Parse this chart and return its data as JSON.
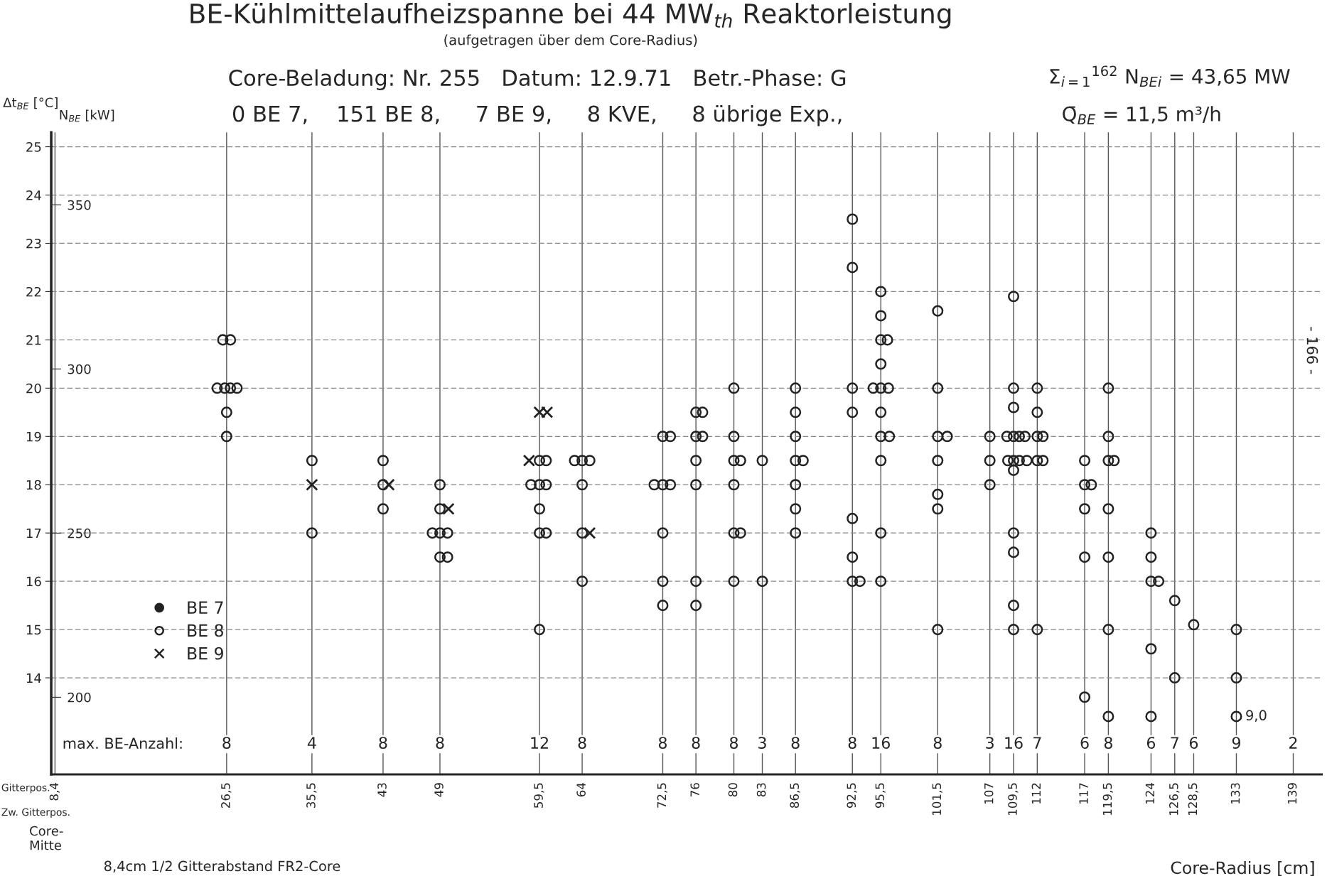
{
  "chart_data": {
    "type": "scatter",
    "title": "BE-Kühlmittelaufheizspanne bei 44 MW$_{th}$ Reaktorleistung",
    "subtitle": "(aufgetragen über dem Core-Radius)",
    "xlabel": "Core-Radius [cm]",
    "ylabel": "Δt$_{BE}$ [°C]",
    "y2label": "N$_{BE}$ [kW]",
    "xlim": [
      8.0,
      142
    ],
    "ylim": [
      12.0,
      25.3
    ],
    "y2lim": [
      176.5,
      372.1
    ],
    "xticks": [
      {
        "value": 8.4,
        "label": "8,4"
      },
      {
        "value": 26.5,
        "label": "26,5"
      },
      {
        "value": 35.5,
        "label": "35,5"
      },
      43,
      49,
      {
        "value": 59.5,
        "label": "59,5"
      },
      64,
      {
        "value": 72.5,
        "label": "72,5"
      },
      76,
      80,
      83,
      {
        "value": 86.5,
        "label": "86,5"
      },
      {
        "value": 92.5,
        "label": "92,5"
      },
      {
        "value": 95.5,
        "label": "95,5"
      },
      {
        "value": 101.5,
        "label": "101,5"
      },
      107,
      {
        "value": 109.5,
        "label": "109,5"
      },
      112,
      117,
      {
        "value": 119.5,
        "label": "119,5"
      },
      124,
      {
        "value": 126.5,
        "label": "126,5"
      },
      {
        "value": 128.5,
        "label": "128,5"
      },
      133,
      139
    ],
    "yticks": [
      14,
      15,
      16,
      17,
      18,
      19,
      20,
      21,
      22,
      23,
      24,
      25
    ],
    "y2ticks": [
      200,
      250,
      300,
      350
    ],
    "grid": true,
    "legend": "bottom left",
    "series": [
      {
        "name": "BE 7",
        "color": "#222222",
        "marker": "circle"
      },
      {
        "name": "BE 8",
        "color": "#222222",
        "marker": "circle",
        "x": [
          26.1,
          26.9,
          25.5,
          26.3,
          26.9,
          27.6,
          26.5,
          26.5,
          35.5,
          35.5,
          43,
          43,
          43,
          49,
          49,
          48.2,
          49,
          49.8,
          49,
          49.8,
          59.5,
          60.2,
          58.6,
          59.5,
          60.2,
          59.5,
          59.5,
          60.2,
          59.5,
          63.2,
          64,
          64.8,
          64,
          64,
          64,
          72.5,
          73.3,
          71.6,
          72.5,
          73.3,
          72.5,
          72.5,
          72.5,
          76,
          76.7,
          76,
          76.7,
          76,
          76,
          76,
          76,
          80,
          80,
          80,
          80.7,
          80,
          80,
          80.7,
          80,
          83,
          83,
          86.5,
          86.5,
          86.5,
          86.5,
          87.3,
          86.5,
          86.5,
          86.5,
          92.5,
          92.5,
          92.5,
          92.5,
          92.5,
          92.5,
          92.5,
          93.3,
          95.5,
          95.5,
          95.5,
          96.2,
          95.5,
          94.7,
          95.5,
          96.3,
          95.5,
          95.5,
          96.4,
          95.5,
          95.5,
          95.5,
          101.5,
          101.5,
          101.5,
          102.5,
          101.5,
          101.5,
          101.5,
          101.5,
          107,
          107,
          107,
          109.5,
          109.5,
          109.5,
          108.8,
          109.5,
          110.1,
          110.7,
          108.9,
          109.5,
          110.1,
          110.9,
          109.5,
          109.5,
          109.5,
          109.5,
          109.5,
          112,
          112,
          112,
          112.6,
          112,
          112.6,
          112,
          117,
          117,
          117.7,
          117,
          117,
          117,
          119.5,
          119.5,
          119.5,
          120.1,
          119.5,
          119.5,
          119.5,
          119.5,
          124,
          124,
          124,
          124.8,
          124,
          124,
          126.5,
          126.5,
          128.5,
          133,
          133,
          133
        ],
        "values": [
          21,
          21,
          20,
          20,
          20,
          20,
          19.5,
          19,
          18.5,
          17,
          18.5,
          18,
          17.5,
          18,
          17.5,
          17,
          17,
          17,
          16.5,
          16.5,
          18.5,
          18.5,
          18,
          18,
          18,
          17.5,
          17,
          17,
          15,
          18.5,
          18.5,
          18.5,
          18,
          17,
          16,
          19,
          19,
          18,
          18,
          18,
          17,
          16,
          15.5,
          19.5,
          19.5,
          19,
          19,
          18.5,
          18,
          16,
          15.5,
          20,
          19,
          18.5,
          18.5,
          18,
          17,
          17,
          16,
          18.5,
          16,
          20,
          19.5,
          19,
          18.5,
          18.5,
          18,
          17.5,
          17,
          23.5,
          22.5,
          20,
          19.5,
          17.3,
          16.5,
          16,
          16,
          22,
          21.5,
          21,
          21,
          20.5,
          20,
          20,
          20,
          19.5,
          19,
          19,
          18.5,
          17,
          16,
          21.6,
          20,
          19,
          19,
          18.5,
          17.8,
          17.5,
          15,
          19,
          18.5,
          18,
          21.9,
          20,
          19.6,
          19,
          19,
          19,
          19,
          18.5,
          18.5,
          18.5,
          18.5,
          18.3,
          17,
          16.6,
          15.5,
          15,
          20,
          19.5,
          19,
          19,
          18.5,
          18.5,
          15,
          18.5,
          18,
          18,
          17.5,
          16.5,
          13.6,
          20,
          19,
          18.5,
          18.5,
          17.5,
          16.5,
          15,
          13.2,
          17,
          16.5,
          16,
          16,
          14.6,
          13.2,
          15.6,
          14,
          15.1,
          15,
          14,
          13.2
        ]
      },
      {
        "name": "BE 9",
        "color": "#222222",
        "marker": "cross",
        "x": [
          59.5,
          60.3,
          58.4,
          35.5,
          43.6,
          49.9,
          64.8
        ],
        "values": [
          19.5,
          19.5,
          18.5,
          18,
          18,
          17.5,
          17
        ]
      }
    ],
    "annotations": [
      "Core-Beladung: Nr. 255   Datum: 12.9.71   Betr.-Phase: G",
      "0 BE 7,    151 BE 8,     7 BE 9,     8 KVE,     8 übrige Exp.,",
      "Σ$_{i=1}$$^{162}$ N$_{BEi}$ = 43,65 MW",
      "Q̄$_{BE}$ = 11,5 m³/h",
      "Gitterpos.",
      "Zw. Gitterpos.",
      "Core-\nMitte",
      "8,4cm 1/2 Gitterabstand FR2-Core",
      "- 166 -",
      "max. BE-Anzahl:",
      "8",
      "4",
      "8",
      "8",
      "12",
      "8",
      "8",
      "8",
      "8",
      "3",
      "8",
      "8",
      "16",
      "8",
      "3",
      "16",
      "7",
      "6",
      "8",
      "6",
      "7",
      "6",
      "9",
      "2",
      {
        "text": "9,0",
        "x": 133,
        "y": 13.2
      }
    ]
  }
}
